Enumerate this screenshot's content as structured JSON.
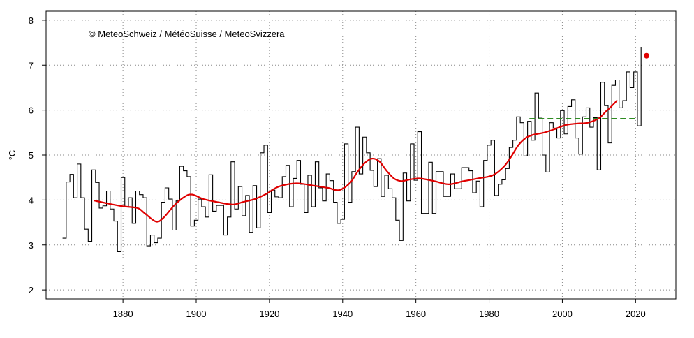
{
  "chart_data": {
    "type": "line",
    "title": "",
    "copyright": "© MeteoSchweiz / MétéoSuisse / MeteoSvizzera",
    "xlabel": "",
    "ylabel": "°C",
    "xlim": [
      1859,
      2031
    ],
    "ylim": [
      1.8,
      8.2
    ],
    "x_ticks": [
      1880,
      1900,
      1920,
      1940,
      1960,
      1980,
      2000,
      2020
    ],
    "y_ticks": [
      2,
      3,
      4,
      5,
      6,
      7,
      8
    ],
    "grid": true,
    "series": [
      {
        "style": "step",
        "color": "#000000",
        "x": [
          1864,
          1865,
          1866,
          1867,
          1868,
          1869,
          1870,
          1871,
          1872,
          1873,
          1874,
          1875,
          1876,
          1877,
          1878,
          1879,
          1880,
          1881,
          1882,
          1883,
          1884,
          1885,
          1886,
          1887,
          1888,
          1889,
          1890,
          1891,
          1892,
          1893,
          1894,
          1895,
          1896,
          1897,
          1898,
          1899,
          1900,
          1901,
          1902,
          1903,
          1904,
          1905,
          1906,
          1907,
          1908,
          1909,
          1910,
          1911,
          1912,
          1913,
          1914,
          1915,
          1916,
          1917,
          1918,
          1919,
          1920,
          1921,
          1922,
          1923,
          1924,
          1925,
          1926,
          1927,
          1928,
          1929,
          1930,
          1931,
          1932,
          1933,
          1934,
          1935,
          1936,
          1937,
          1938,
          1939,
          1940,
          1941,
          1942,
          1943,
          1944,
          1945,
          1946,
          1947,
          1948,
          1949,
          1950,
          1951,
          1952,
          1953,
          1954,
          1955,
          1956,
          1957,
          1958,
          1959,
          1960,
          1961,
          1962,
          1963,
          1964,
          1965,
          1966,
          1967,
          1968,
          1969,
          1970,
          1971,
          1972,
          1973,
          1974,
          1975,
          1976,
          1977,
          1978,
          1979,
          1980,
          1981,
          1982,
          1983,
          1984,
          1985,
          1986,
          1987,
          1988,
          1989,
          1990,
          1991,
          1992,
          1993,
          1994,
          1995,
          1996,
          1997,
          1998,
          1999,
          2000,
          2001,
          2002,
          2003,
          2004,
          2005,
          2006,
          2007,
          2008,
          2009,
          2010,
          2011,
          2012,
          2013,
          2014,
          2015,
          2016,
          2017,
          2018,
          2019,
          2020,
          2021,
          2022
        ],
        "values": [
          3.15,
          4.4,
          4.57,
          4.05,
          4.8,
          4.05,
          3.35,
          3.08,
          4.67,
          4.39,
          3.82,
          3.87,
          4.2,
          3.8,
          3.53,
          2.85,
          4.5,
          3.85,
          4.05,
          3.48,
          4.2,
          4.12,
          4.05,
          2.98,
          3.22,
          3.05,
          3.15,
          3.95,
          4.27,
          4.02,
          3.33,
          3.98,
          4.75,
          4.65,
          4.52,
          3.42,
          3.55,
          4.02,
          3.85,
          3.62,
          4.56,
          3.75,
          3.88,
          3.88,
          3.22,
          3.62,
          4.85,
          3.8,
          4.3,
          3.65,
          4.1,
          3.28,
          4.32,
          3.38,
          5.05,
          5.22,
          3.72,
          4.22,
          4.07,
          4.05,
          4.52,
          4.77,
          3.85,
          4.48,
          4.88,
          4.35,
          3.72,
          4.55,
          3.85,
          4.85,
          4.27,
          3.98,
          4.58,
          4.43,
          3.95,
          3.48,
          3.57,
          5.25,
          3.95,
          4.63,
          5.62,
          4.58,
          5.4,
          5.05,
          4.66,
          4.3,
          4.92,
          4.08,
          4.55,
          4.25,
          4.05,
          3.55,
          3.1,
          4.6,
          3.98,
          5.25,
          4.44,
          5.52,
          3.7,
          3.7,
          4.84,
          3.7,
          4.63,
          4.63,
          4.08,
          4.08,
          4.58,
          4.25,
          4.25,
          4.72,
          4.72,
          4.65,
          4.16,
          4.42,
          3.85,
          4.88,
          5.22,
          5.33,
          4.1,
          4.35,
          4.45,
          4.7,
          5.17,
          5.33,
          5.85,
          5.72,
          4.98,
          5.75,
          5.33,
          6.38,
          5.82,
          5.0,
          4.62,
          5.72,
          5.6,
          5.38,
          5.99,
          5.47,
          6.08,
          6.23,
          5.38,
          5.02,
          5.85,
          6.05,
          5.62,
          5.83,
          4.67,
          6.62,
          6.1,
          5.27,
          6.55,
          6.67,
          6.05,
          6.21,
          6.85,
          6.5,
          6.85,
          5.65,
          7.4
        ]
      },
      {
        "style": "smooth",
        "color": "#e00000",
        "x": [
          1872,
          1876,
          1880,
          1884,
          1886,
          1889,
          1891,
          1894,
          1897,
          1899,
          1902,
          1906,
          1910,
          1913,
          1916,
          1919,
          1922,
          1925,
          1928,
          1932,
          1936,
          1939,
          1942,
          1944,
          1946,
          1948,
          1950,
          1952,
          1954,
          1956,
          1958,
          1961,
          1965,
          1969,
          1973,
          1977,
          1981,
          1984,
          1986,
          1988,
          1990,
          1992,
          1995,
          1998,
          2001,
          2004,
          2007,
          2010,
          2012,
          2013,
          2015
        ],
        "values": [
          3.99,
          3.92,
          3.86,
          3.82,
          3.7,
          3.52,
          3.6,
          3.88,
          4.08,
          4.12,
          4.02,
          3.95,
          3.9,
          3.96,
          4.02,
          4.13,
          4.28,
          4.35,
          4.37,
          4.32,
          4.27,
          4.22,
          4.38,
          4.62,
          4.82,
          4.92,
          4.86,
          4.65,
          4.48,
          4.42,
          4.45,
          4.48,
          4.42,
          4.35,
          4.42,
          4.48,
          4.55,
          4.74,
          4.96,
          5.22,
          5.38,
          5.45,
          5.5,
          5.58,
          5.67,
          5.7,
          5.72,
          5.82,
          5.98,
          6.05,
          6.22
        ]
      },
      {
        "style": "dashed",
        "color": "#2e8b22",
        "x": [
          1991,
          2020
        ],
        "values": [
          5.81,
          5.81
        ]
      },
      {
        "style": "point",
        "color": "#e00000",
        "x": [
          2023
        ],
        "values": [
          7.21
        ]
      }
    ]
  }
}
